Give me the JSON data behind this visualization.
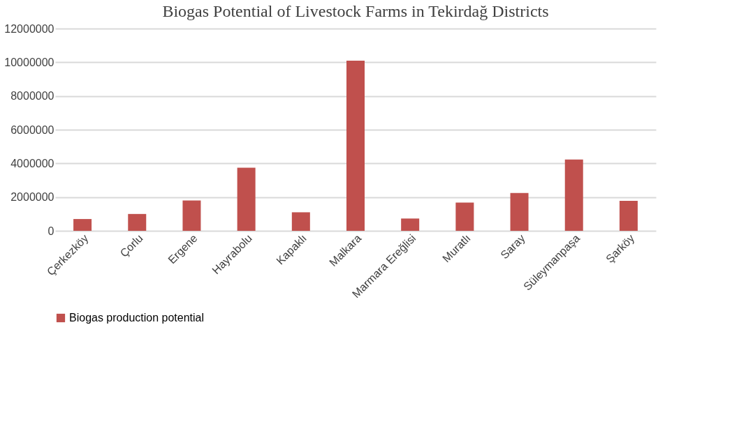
{
  "chart_data": {
    "type": "bar",
    "title": "Biogas Potential of Livestock Farms in Tekirdağ Districts",
    "categories": [
      "Çerkezköy",
      "Çorlu",
      "Ergene",
      "Hayrabolu",
      "Kapaklı",
      "Malkara",
      "Marmara Ereğlisi",
      "Muratlı",
      "Saray",
      "Süleymanpaşa",
      "Şarköy"
    ],
    "series": [
      {
        "name": "Biogas production potential",
        "color": "#c0504d",
        "values": [
          700000,
          1000000,
          1800000,
          3750000,
          1100000,
          10100000,
          730000,
          1680000,
          2250000,
          4230000,
          1780000
        ]
      }
    ],
    "ylim": [
      0,
      12000000
    ],
    "yticks": [
      0,
      2000000,
      4000000,
      6000000,
      8000000,
      10000000,
      12000000
    ],
    "grid": "y",
    "legend": "bottom"
  }
}
